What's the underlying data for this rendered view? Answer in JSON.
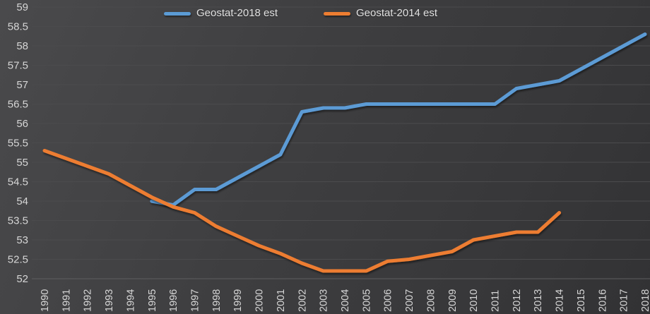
{
  "colors": {
    "background": "#3e3e40",
    "gridline": "#4b4b4d",
    "axis_line": "#5e5e60",
    "text": "#d6d6d6",
    "series_blue": "#5b9bd5",
    "series_orange": "#ed7d31"
  },
  "chart_data": {
    "type": "line",
    "title": "",
    "xlabel": "",
    "ylabel": "",
    "categories": [
      "1990",
      "1991",
      "1992",
      "1993",
      "1994",
      "1995",
      "1996",
      "1997",
      "1998",
      "1999",
      "2000",
      "2001",
      "2002",
      "2003",
      "2004",
      "2005",
      "2006",
      "2007",
      "2008",
      "2009",
      "2010",
      "2011",
      "2012",
      "2013",
      "2014",
      "2015",
      "2016",
      "2017",
      "2018"
    ],
    "series": [
      {
        "name": "Geostat-2018 est",
        "color": "#5b9bd5",
        "values": [
          null,
          null,
          null,
          null,
          null,
          54.0,
          53.9,
          54.3,
          54.3,
          54.6,
          54.9,
          55.2,
          56.3,
          56.4,
          56.4,
          56.5,
          56.5,
          56.5,
          56.5,
          56.5,
          56.5,
          56.5,
          56.9,
          57.0,
          57.1,
          57.4,
          57.7,
          58.0,
          58.3
        ]
      },
      {
        "name": "Geostat-2014 est",
        "color": "#ed7d31",
        "values": [
          55.3,
          55.1,
          54.9,
          54.7,
          54.4,
          54.1,
          53.85,
          53.7,
          53.35,
          53.1,
          52.85,
          52.65,
          52.4,
          52.2,
          52.2,
          52.2,
          52.45,
          52.5,
          52.6,
          52.7,
          53.0,
          53.1,
          53.2,
          53.2,
          53.7,
          null,
          null,
          null,
          null
        ]
      }
    ],
    "ylim": [
      52,
      59
    ],
    "yticks": [
      "59",
      "58.5",
      "58",
      "57.5",
      "57",
      "56.5",
      "56",
      "55.5",
      "55",
      "54.5",
      "54",
      "53.5",
      "53",
      "52.5",
      "52"
    ],
    "grid": true,
    "legend_position": "top"
  }
}
